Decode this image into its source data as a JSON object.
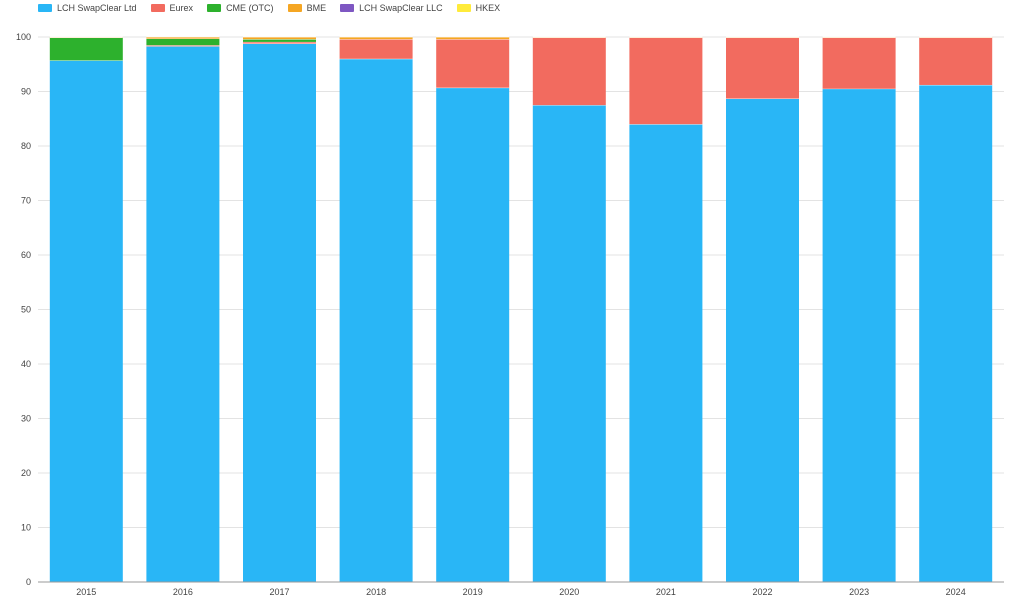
{
  "chart_data": {
    "type": "bar",
    "stacked": true,
    "categories": [
      "2015",
      "2016",
      "2017",
      "2018",
      "2019",
      "2020",
      "2021",
      "2022",
      "2023",
      "2024"
    ],
    "series": [
      {
        "name": "LCH SwapClear Ltd",
        "color": "#29b6f6",
        "values": [
          95.7,
          98.3,
          98.8,
          96.0,
          90.7,
          87.5,
          84.0,
          88.7,
          90.5,
          91.2
        ]
      },
      {
        "name": "Eurex",
        "color": "#f26b5f",
        "values": [
          0.0,
          0.2,
          0.3,
          3.6,
          8.9,
          12.4,
          15.9,
          11.2,
          9.4,
          8.7
        ]
      },
      {
        "name": "CME (OTC)",
        "color": "#2db12d",
        "values": [
          4.2,
          1.2,
          0.5,
          0.0,
          0.0,
          0.0,
          0.0,
          0.0,
          0.0,
          0.0
        ]
      },
      {
        "name": "BME",
        "color": "#f5a623",
        "values": [
          0.1,
          0.3,
          0.4,
          0.4,
          0.4,
          0.1,
          0.1,
          0.1,
          0.1,
          0.1
        ]
      },
      {
        "name": "LCH SwapClear LLC",
        "color": "#7e57c2",
        "values": [
          0.0,
          0.0,
          0.0,
          0.0,
          0.0,
          0.0,
          0.0,
          0.0,
          0.0,
          0.0
        ]
      },
      {
        "name": "HKEX",
        "color": "#ffeb3b",
        "values": [
          0.0,
          0.0,
          0.0,
          0.0,
          0.0,
          0.0,
          0.0,
          0.0,
          0.0,
          0.0
        ]
      }
    ],
    "title": "",
    "xlabel": "",
    "ylabel": "",
    "ylim": [
      0,
      100
    ],
    "yticks": [
      "0",
      "10",
      "20",
      "30",
      "40",
      "50",
      "60",
      "70",
      "80",
      "90",
      "100"
    ],
    "grid": true,
    "legend_position": "top-left"
  }
}
